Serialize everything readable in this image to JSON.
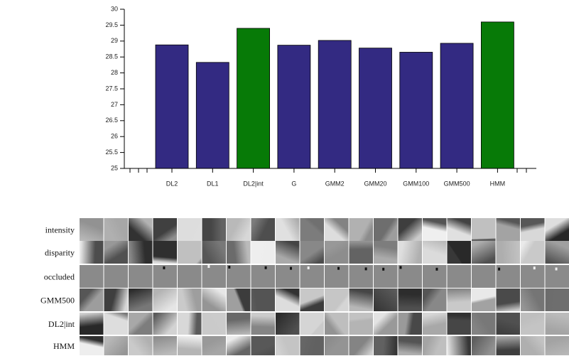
{
  "chart_data": {
    "type": "bar",
    "categories": [
      "DL2",
      "DL1",
      "DL2|int",
      "G",
      "GMM2",
      "GMM20",
      "GMM100",
      "GMM500",
      "HMM"
    ],
    "values": [
      28.88,
      28.33,
      29.4,
      28.87,
      29.02,
      28.78,
      28.65,
      28.93,
      29.6
    ],
    "colors": [
      "#332a82",
      "#332a82",
      "#077a07",
      "#332a82",
      "#332a82",
      "#332a82",
      "#332a82",
      "#332a82",
      "#077a07"
    ],
    "ylim": [
      25,
      30
    ],
    "yticks": [
      25,
      25.5,
      26,
      26.5,
      27,
      27.5,
      28,
      28.5,
      29,
      29.5,
      30
    ]
  },
  "row_labels": [
    "intensity",
    "disparity",
    "occluded",
    "GMM500",
    "DL2|int",
    "HMM"
  ]
}
